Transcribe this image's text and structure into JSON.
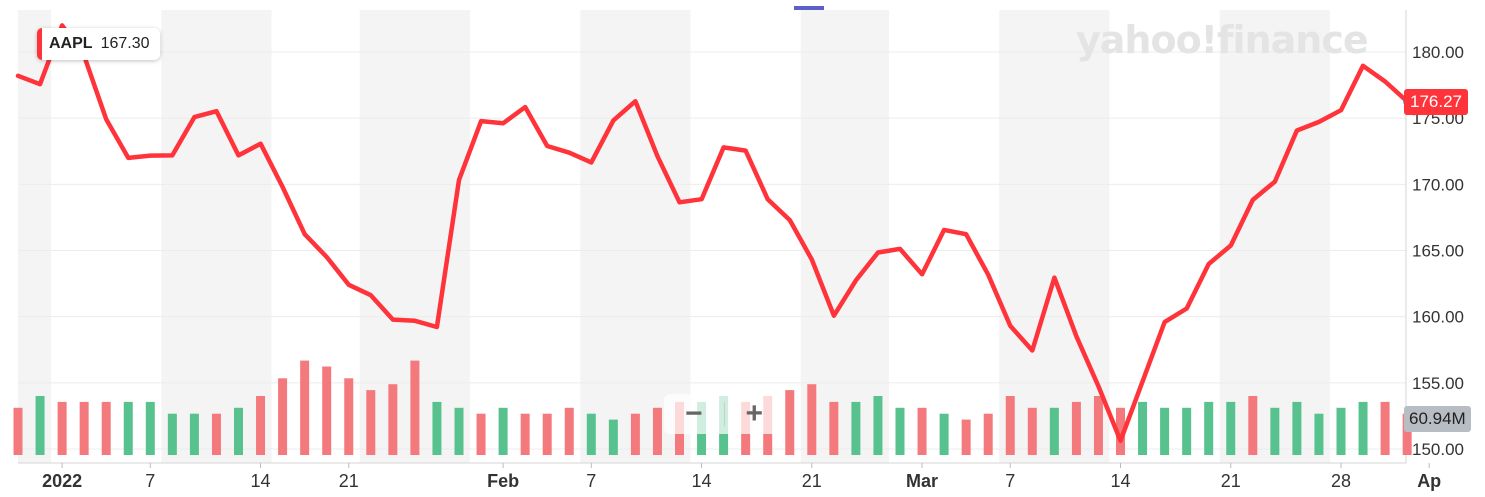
{
  "legend": {
    "symbol": "AAPL",
    "value": "167.30"
  },
  "last_price_label": "176.27",
  "volume_label": "60.94M",
  "watermark": "yahoo!finance",
  "zoom": {
    "minus": "−",
    "plus": "+"
  },
  "colors": {
    "price_line": "#ff333a",
    "vol_up": "#57c28e",
    "vol_down": "#f4797c",
    "band": "#f4f4f4",
    "grid": "#ececec",
    "last_dot": "#1a8cff"
  },
  "chart_data": {
    "type": "line",
    "title": "",
    "series": [
      {
        "name": "AAPL",
        "x": [
          "2021-12-30",
          "2021-12-31",
          "2022-01-03",
          "2022-01-04",
          "2022-01-05",
          "2022-01-06",
          "2022-01-07",
          "2022-01-10",
          "2022-01-11",
          "2022-01-12",
          "2022-01-13",
          "2022-01-14",
          "2022-01-18",
          "2022-01-19",
          "2022-01-20",
          "2022-01-21",
          "2022-01-24",
          "2022-01-25",
          "2022-01-26",
          "2022-01-27",
          "2022-01-28",
          "2022-01-31",
          "2022-02-01",
          "2022-02-02",
          "2022-02-03",
          "2022-02-04",
          "2022-02-07",
          "2022-02-08",
          "2022-02-09",
          "2022-02-10",
          "2022-02-11",
          "2022-02-14",
          "2022-02-15",
          "2022-02-16",
          "2022-02-17",
          "2022-02-18",
          "2022-02-22",
          "2022-02-23",
          "2022-02-24",
          "2022-02-25",
          "2022-02-28",
          "2022-03-01",
          "2022-03-02",
          "2022-03-03",
          "2022-03-04",
          "2022-03-07",
          "2022-03-08",
          "2022-03-09",
          "2022-03-10",
          "2022-03-11",
          "2022-03-14",
          "2022-03-15",
          "2022-03-16",
          "2022-03-17",
          "2022-03-18",
          "2022-03-21",
          "2022-03-22",
          "2022-03-23",
          "2022-03-24",
          "2022-03-25",
          "2022-03-28",
          "2022-03-29",
          "2022-03-30",
          "2022-03-31"
        ],
        "close": [
          178.2,
          177.57,
          182.01,
          179.7,
          174.92,
          172.0,
          172.17,
          172.19,
          175.08,
          175.53,
          172.19,
          173.07,
          169.8,
          166.23,
          164.51,
          162.41,
          161.62,
          159.78,
          159.69,
          159.22,
          170.33,
          174.78,
          174.61,
          175.84,
          172.9,
          172.39,
          171.66,
          174.83,
          176.28,
          172.12,
          168.64,
          168.88,
          172.79,
          172.55,
          168.88,
          167.3,
          164.32,
          160.07,
          162.74,
          164.85,
          165.12,
          163.2,
          166.56,
          166.23,
          163.17,
          159.3,
          157.44,
          162.95,
          158.52,
          154.73,
          150.62,
          155.09,
          159.59,
          160.62,
          163.98,
          165.38,
          168.82,
          170.21,
          174.07,
          174.72,
          175.6,
          178.96,
          177.77,
          176.27
        ],
        "volume": [
          52,
          54,
          53,
          53,
          53,
          53,
          53,
          51,
          51,
          51,
          52,
          54,
          57,
          60,
          59,
          57,
          55,
          56,
          60,
          53,
          52,
          51,
          52,
          51,
          51,
          52,
          51,
          50,
          51,
          52,
          53,
          53,
          54,
          53,
          54,
          55,
          56,
          53,
          53,
          54,
          52,
          52,
          51,
          50,
          51,
          54,
          52,
          52,
          53,
          54,
          52,
          53,
          52,
          52,
          53,
          53,
          54,
          52,
          53,
          51,
          52,
          53,
          53,
          51
        ],
        "volume_direction": [
          "down",
          "up",
          "down",
          "down",
          "down",
          "up",
          "up",
          "up",
          "up",
          "down",
          "up",
          "down",
          "down",
          "down",
          "down",
          "down",
          "down",
          "down",
          "down",
          "up",
          "up",
          "down",
          "up",
          "down",
          "down",
          "down",
          "up",
          "up",
          "down",
          "down",
          "down",
          "up",
          "up",
          "down",
          "down",
          "down",
          "down",
          "down",
          "up",
          "up",
          "up",
          "down",
          "up",
          "down",
          "down",
          "down",
          "down",
          "up",
          "down",
          "down",
          "down",
          "up",
          "up",
          "up",
          "up",
          "up",
          "down",
          "up",
          "up",
          "up",
          "up",
          "up",
          "down",
          "down"
        ]
      }
    ],
    "ylim": [
      149.5,
      183
    ],
    "y_ticks": [
      "150.00",
      "155.00",
      "160.00",
      "165.00",
      "170.00",
      "175.00",
      "180.00"
    ],
    "x_ticks": [
      {
        "label": "2022",
        "date": "2022-01-03"
      },
      {
        "label": "7",
        "date": "2022-01-07"
      },
      {
        "label": "14",
        "date": "2022-01-14"
      },
      {
        "label": "21",
        "date": "2022-01-21"
      },
      {
        "label": "Feb",
        "date": "2022-02-01"
      },
      {
        "label": "7",
        "date": "2022-02-07"
      },
      {
        "label": "14",
        "date": "2022-02-14"
      },
      {
        "label": "21",
        "date": "2022-02-21"
      },
      {
        "label": "Mar",
        "date": "2022-03-01"
      },
      {
        "label": "7",
        "date": "2022-03-07"
      },
      {
        "label": "14",
        "date": "2022-03-14"
      },
      {
        "label": "21",
        "date": "2022-03-21"
      },
      {
        "label": "28",
        "date": "2022-03-28"
      },
      {
        "label": "Ap",
        "date": "2022-04-01"
      }
    ],
    "grid": true,
    "axis_position": "right"
  }
}
